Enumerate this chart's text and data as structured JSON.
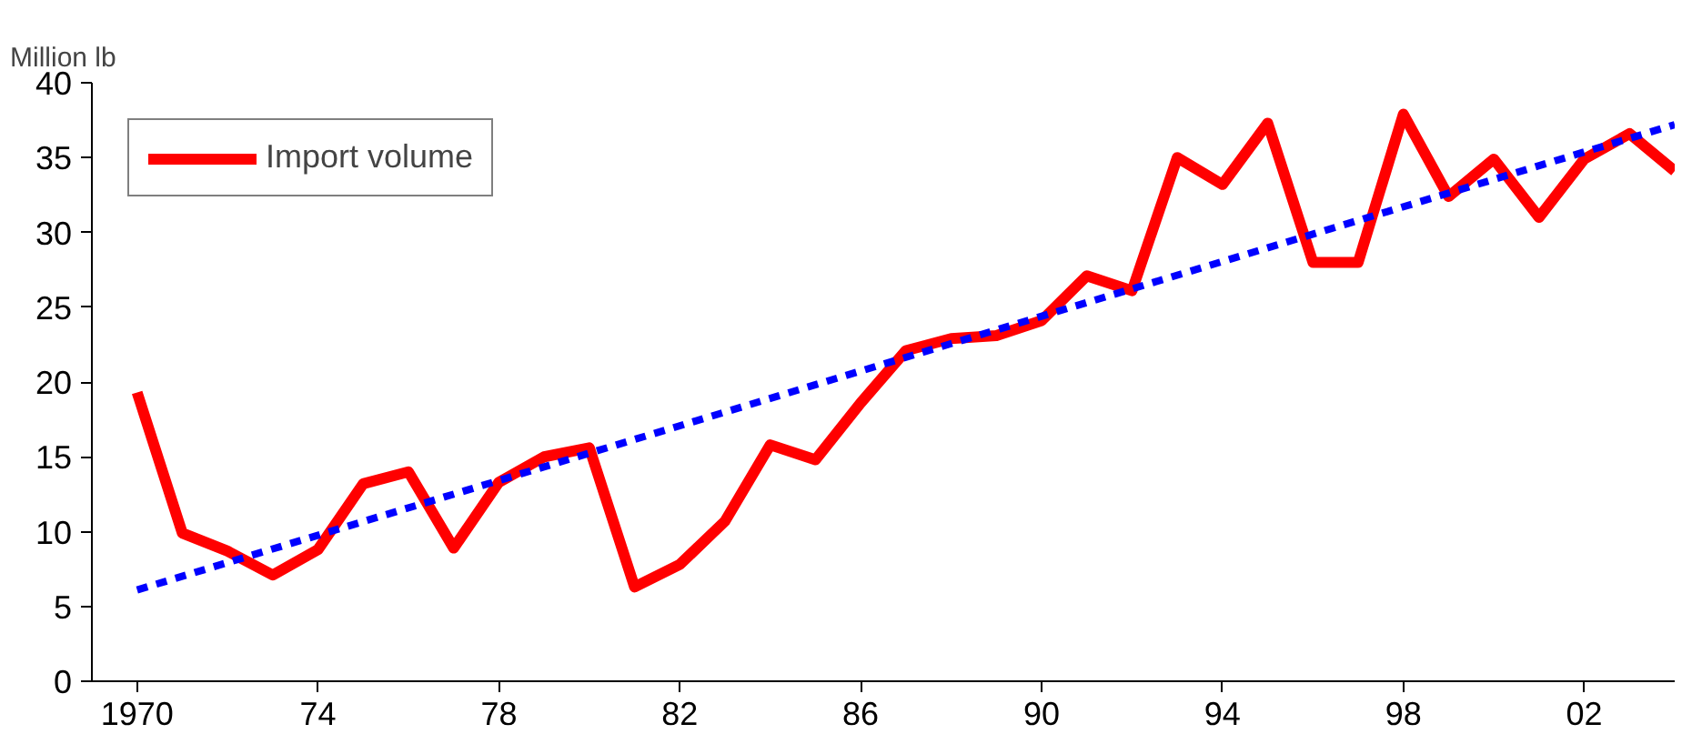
{
  "chart_data": {
    "type": "line",
    "ylabel": "Million lb",
    "x": [
      1970,
      1971,
      1972,
      1973,
      1974,
      1975,
      1976,
      1977,
      1978,
      1979,
      1980,
      1981,
      1982,
      1983,
      1984,
      1985,
      1986,
      1987,
      1988,
      1989,
      1990,
      1991,
      1992,
      1993,
      1994,
      1995,
      1996,
      1997,
      1998,
      1999,
      2000,
      2001,
      2002,
      2003,
      2004
    ],
    "series": [
      {
        "name": "Import volume",
        "color": "#ff0000",
        "line_style": "solid",
        "values": [
          19.3,
          9.9,
          8.7,
          7.1,
          8.8,
          13.2,
          14.0,
          8.9,
          13.3,
          15.0,
          15.6,
          6.3,
          7.8,
          10.7,
          15.8,
          14.8,
          18.6,
          22.1,
          22.9,
          23.1,
          24.1,
          27.1,
          26.1,
          35.0,
          33.2,
          37.3,
          28.0,
          28.0,
          37.9,
          32.4,
          34.9,
          31.0,
          34.9,
          36.6,
          34.1
        ]
      },
      {
        "type": "line",
        "color": "#0000ff",
        "line_style": "dashed",
        "x": [
          1970,
          2004
        ],
        "values": [
          6.1,
          37.2
        ]
      }
    ],
    "xlim": [
      1969,
      2004
    ],
    "xticks": [
      1970,
      {
        "value": 1974,
        "label": "74"
      },
      {
        "value": 1978,
        "label": "78"
      },
      {
        "value": 1982,
        "label": "82"
      },
      {
        "value": 1986,
        "label": "86"
      },
      {
        "value": 1990,
        "label": "90"
      },
      {
        "value": 1994,
        "label": "94"
      },
      {
        "value": 1998,
        "label": "98"
      },
      {
        "value": 2002,
        "label": "02"
      }
    ],
    "ylim": [
      0,
      40
    ],
    "yticks": [
      0,
      5,
      10,
      15,
      20,
      25,
      30,
      35,
      40
    ],
    "grid": false,
    "legend": "top left",
    "marker": "none"
  }
}
